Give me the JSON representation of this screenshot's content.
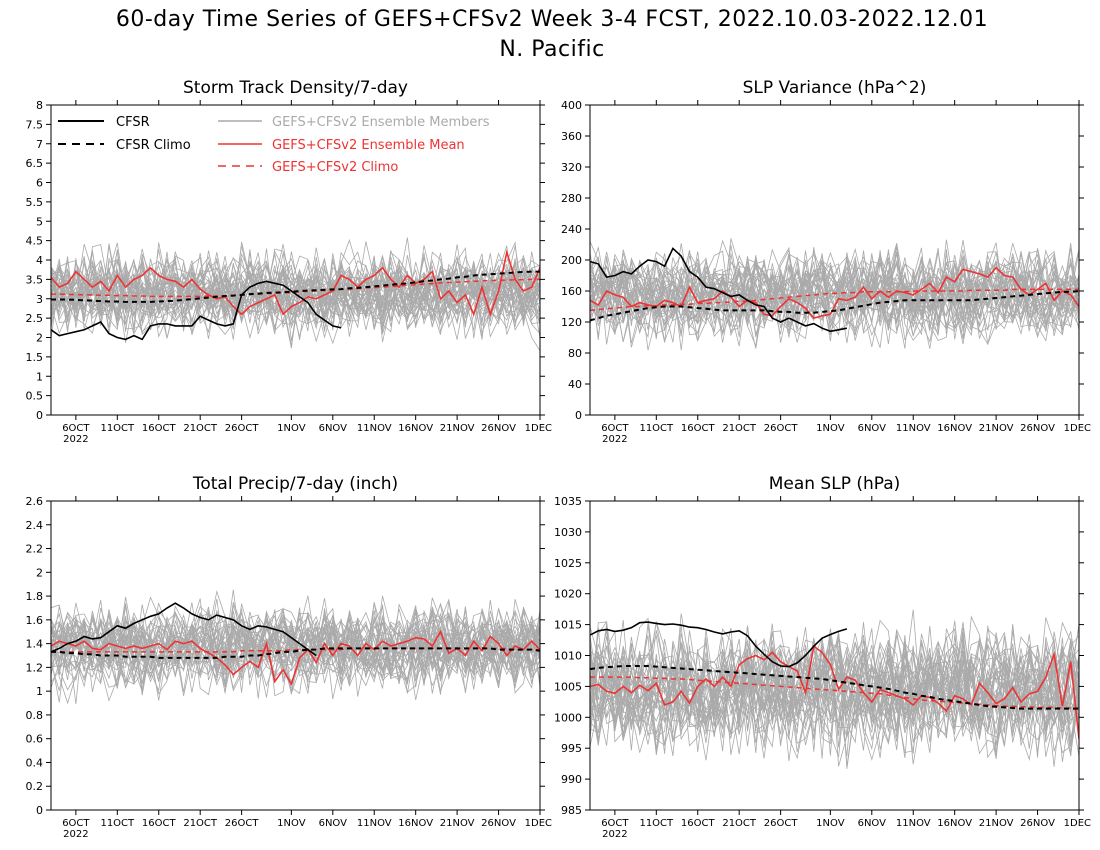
{
  "figure": {
    "title_line1": "60-day Time Series of GEFS+CFSv2 Week 3-4 FCST, 2022.10.03-2022.12.01",
    "title_line2": "N. Pacific"
  },
  "legend": {
    "cfsr": "CFSR",
    "cfsr_climo": "CFSR Climo",
    "members": "GEFS+CFSv2 Ensemble Members",
    "ens_mean": "GEFS+CFSv2 Ensemble Mean",
    "ens_climo": "GEFS+CFSv2 Climo"
  },
  "colors": {
    "cfsr": "#000000",
    "members": "#aaaaaa",
    "ens_mean": "#ee3333",
    "ens_climo": "#ee3333"
  },
  "x_axis": {
    "ticks": [
      {
        "day": 3,
        "label": "6OCT"
      },
      {
        "day": 8,
        "label": "11OCT"
      },
      {
        "day": 13,
        "label": "16OCT"
      },
      {
        "day": 18,
        "label": "21OCT"
      },
      {
        "day": 23,
        "label": "26OCT"
      },
      {
        "day": 29,
        "label": "1NOV"
      },
      {
        "day": 34,
        "label": "6NOV"
      },
      {
        "day": 39,
        "label": "11NOV"
      },
      {
        "day": 44,
        "label": "16NOV"
      },
      {
        "day": 49,
        "label": "21NOV"
      },
      {
        "day": 54,
        "label": "26NOV"
      },
      {
        "day": 59,
        "label": "1DEC"
      }
    ],
    "year_label": "2022"
  },
  "chart_data": [
    {
      "type": "line",
      "title": "Storm Track Density/7-day",
      "xlim": [
        0,
        59
      ],
      "ylim": [
        0,
        8
      ],
      "yticks": [
        0,
        0.5,
        1,
        1.5,
        2,
        2.5,
        3,
        3.5,
        4,
        4.5,
        5,
        5.5,
        6,
        6.5,
        7,
        7.5,
        8
      ],
      "legend": "top-left",
      "cfsr": [
        2.2,
        2.05,
        2.1,
        2.15,
        2.2,
        2.3,
        2.4,
        2.1,
        2.0,
        1.95,
        2.05,
        1.95,
        2.3,
        2.35,
        2.35,
        2.3,
        2.3,
        2.3,
        2.55,
        2.45,
        2.35,
        2.3,
        2.35,
        3.1,
        3.3,
        3.4,
        3.45,
        3.4,
        3.35,
        3.2,
        3.05,
        2.9,
        2.6,
        2.45,
        2.3,
        2.25
      ],
      "cfsr_climo": [
        2.98,
        2.98,
        2.98,
        2.97,
        2.96,
        2.95,
        2.94,
        2.93,
        2.93,
        2.92,
        2.92,
        2.92,
        2.92,
        2.93,
        2.94,
        2.95,
        2.97,
        2.99,
        3.01,
        3.03,
        3.05,
        3.07,
        3.08,
        3.1,
        3.12,
        3.13,
        3.15,
        3.16,
        3.17,
        3.18,
        3.2,
        3.21,
        3.22,
        3.23,
        3.24,
        3.25,
        3.27,
        3.28,
        3.3,
        3.32,
        3.34,
        3.36,
        3.38,
        3.4,
        3.42,
        3.45,
        3.47,
        3.5,
        3.52,
        3.55,
        3.57,
        3.6,
        3.62,
        3.63,
        3.65,
        3.66,
        3.68,
        3.69,
        3.7,
        3.7
      ],
      "ens_mean": [
        3.55,
        3.3,
        3.4,
        3.7,
        3.5,
        3.3,
        3.45,
        3.2,
        3.6,
        3.3,
        3.5,
        3.6,
        3.8,
        3.6,
        3.5,
        3.45,
        3.3,
        3.5,
        3.25,
        3.1,
        3.0,
        3.05,
        2.8,
        2.6,
        2.8,
        2.9,
        3.0,
        3.1,
        2.6,
        2.8,
        2.9,
        3.05,
        3.0,
        3.1,
        3.2,
        3.6,
        3.5,
        3.3,
        3.5,
        3.6,
        3.8,
        3.5,
        3.3,
        3.6,
        3.4,
        3.5,
        3.7,
        3.0,
        3.2,
        2.9,
        3.1,
        2.6,
        3.3,
        2.6,
        3.2,
        4.2,
        3.5,
        3.2,
        3.3,
        3.8
      ],
      "ens_climo": [
        3.12,
        3.12,
        3.11,
        3.11,
        3.1,
        3.1,
        3.09,
        3.09,
        3.08,
        3.08,
        3.07,
        3.07,
        3.06,
        3.06,
        3.06,
        3.06,
        3.06,
        3.06,
        3.06,
        3.07,
        3.07,
        3.08,
        3.09,
        3.1,
        3.11,
        3.12,
        3.13,
        3.14,
        3.15,
        3.16,
        3.18,
        3.19,
        3.2,
        3.21,
        3.22,
        3.24,
        3.25,
        3.26,
        3.28,
        3.29,
        3.3,
        3.32,
        3.33,
        3.35,
        3.36,
        3.38,
        3.39,
        3.41,
        3.42,
        3.43,
        3.44,
        3.45,
        3.46,
        3.47,
        3.48,
        3.48,
        3.49,
        3.49,
        3.5,
        3.5
      ],
      "members": {
        "center": 3.15,
        "spread": 1.5,
        "count": 40
      }
    },
    {
      "type": "line",
      "title": "SLP Variance (hPa^2)",
      "xlim": [
        0,
        59
      ],
      "ylim": [
        0,
        400
      ],
      "yticks": [
        0,
        40,
        80,
        120,
        160,
        200,
        240,
        280,
        320,
        360,
        400
      ],
      "cfsr": [
        198,
        195,
        178,
        180,
        185,
        182,
        192,
        200,
        198,
        192,
        215,
        205,
        185,
        178,
        165,
        163,
        158,
        153,
        155,
        148,
        142,
        140,
        125,
        120,
        125,
        120,
        115,
        118,
        112,
        108,
        110,
        112
      ],
      "cfsr_climo": [
        122,
        125,
        128,
        130,
        132,
        134,
        136,
        138,
        139,
        140,
        140,
        140,
        139,
        138,
        137,
        136,
        135,
        135,
        135,
        135,
        135,
        135,
        134,
        133,
        133,
        132,
        132,
        132,
        133,
        134,
        135,
        137,
        139,
        141,
        143,
        145,
        146,
        147,
        148,
        148,
        148,
        148,
        148,
        148,
        148,
        148,
        148,
        149,
        150,
        151,
        152,
        153,
        154,
        155,
        156,
        157,
        158,
        159,
        159,
        160
      ],
      "ens_mean": [
        148,
        142,
        160,
        155,
        152,
        140,
        145,
        142,
        140,
        148,
        145,
        140,
        165,
        145,
        148,
        150,
        160,
        152,
        140,
        148,
        145,
        130,
        128,
        140,
        150,
        145,
        138,
        125,
        128,
        130,
        150,
        148,
        152,
        165,
        150,
        160,
        152,
        160,
        158,
        155,
        162,
        170,
        158,
        178,
        172,
        188,
        185,
        182,
        178,
        190,
        180,
        178,
        162,
        155,
        162,
        170,
        148,
        160,
        155,
        140
      ],
      "ens_climo": [
        135,
        136,
        137,
        138,
        139,
        140,
        140,
        141,
        141,
        142,
        142,
        143,
        143,
        144,
        144,
        145,
        145,
        146,
        147,
        147,
        148,
        149,
        150,
        151,
        152,
        153,
        154,
        155,
        156,
        157,
        157,
        158,
        158,
        159,
        159,
        159,
        159,
        159,
        159,
        160,
        160,
        160,
        160,
        160,
        160,
        160,
        161,
        161,
        161,
        161,
        161,
        162,
        162,
        162,
        162,
        162,
        162,
        162,
        162,
        162
      ],
      "members": {
        "center": 155,
        "spread": 80,
        "count": 40
      }
    },
    {
      "type": "line",
      "title": "Total Precip/7-day (inch)",
      "xlim": [
        0,
        59
      ],
      "ylim": [
        0,
        2.6
      ],
      "yticks": [
        0,
        0.2,
        0.4,
        0.6,
        0.8,
        1,
        1.2,
        1.4,
        1.6,
        1.8,
        2,
        2.2,
        2.4,
        2.6
      ],
      "cfsr": [
        1.33,
        1.36,
        1.4,
        1.42,
        1.46,
        1.44,
        1.45,
        1.5,
        1.55,
        1.53,
        1.57,
        1.6,
        1.63,
        1.65,
        1.7,
        1.74,
        1.7,
        1.65,
        1.62,
        1.6,
        1.64,
        1.62,
        1.6,
        1.55,
        1.52,
        1.55,
        1.54,
        1.52,
        1.5,
        1.45,
        1.4,
        1.35,
        1.3
      ],
      "cfsr_climo": [
        1.33,
        1.33,
        1.32,
        1.32,
        1.31,
        1.31,
        1.3,
        1.3,
        1.3,
        1.29,
        1.29,
        1.29,
        1.29,
        1.28,
        1.28,
        1.28,
        1.28,
        1.28,
        1.28,
        1.28,
        1.28,
        1.29,
        1.29,
        1.29,
        1.3,
        1.3,
        1.31,
        1.32,
        1.33,
        1.33,
        1.34,
        1.35,
        1.35,
        1.36,
        1.36,
        1.36,
        1.36,
        1.36,
        1.36,
        1.36,
        1.36,
        1.36,
        1.36,
        1.36,
        1.36,
        1.36,
        1.36,
        1.36,
        1.36,
        1.36,
        1.36,
        1.36,
        1.36,
        1.36,
        1.35,
        1.35,
        1.35,
        1.35,
        1.35,
        1.34
      ],
      "ens_mean": [
        1.38,
        1.42,
        1.4,
        1.38,
        1.42,
        1.36,
        1.35,
        1.4,
        1.38,
        1.36,
        1.38,
        1.36,
        1.38,
        1.4,
        1.35,
        1.42,
        1.4,
        1.42,
        1.36,
        1.32,
        1.28,
        1.22,
        1.14,
        1.2,
        1.25,
        1.2,
        1.4,
        1.08,
        1.18,
        1.06,
        1.28,
        1.35,
        1.24,
        1.4,
        1.3,
        1.4,
        1.38,
        1.3,
        1.4,
        1.35,
        1.42,
        1.38,
        1.4,
        1.42,
        1.45,
        1.44,
        1.38,
        1.5,
        1.32,
        1.36,
        1.3,
        1.42,
        1.34,
        1.46,
        1.4,
        1.3,
        1.38,
        1.35,
        1.42,
        1.35
      ],
      "ens_climo": [
        1.33,
        1.33,
        1.33,
        1.33,
        1.33,
        1.33,
        1.33,
        1.33,
        1.33,
        1.33,
        1.33,
        1.33,
        1.33,
        1.33,
        1.33,
        1.33,
        1.33,
        1.33,
        1.33,
        1.33,
        1.33,
        1.33,
        1.33,
        1.34,
        1.34,
        1.34,
        1.34,
        1.34,
        1.34,
        1.35,
        1.35,
        1.35,
        1.35,
        1.35,
        1.35,
        1.35,
        1.36,
        1.36,
        1.36,
        1.36,
        1.36,
        1.36,
        1.36,
        1.36,
        1.36,
        1.36,
        1.36,
        1.36,
        1.36,
        1.36,
        1.36,
        1.36,
        1.36,
        1.36,
        1.36,
        1.36,
        1.35,
        1.35,
        1.35,
        1.35
      ],
      "members": {
        "center": 1.37,
        "spread": 0.5,
        "count": 40
      }
    },
    {
      "type": "line",
      "title": "Mean SLP (hPa)",
      "xlim": [
        0,
        59
      ],
      "ylim": [
        985,
        1035
      ],
      "yticks": [
        985,
        990,
        995,
        1000,
        1005,
        1010,
        1015,
        1020,
        1025,
        1030,
        1035
      ],
      "cfsr": [
        1013.3,
        1014.0,
        1014.2,
        1013.9,
        1014.1,
        1014.5,
        1015.3,
        1015.4,
        1015.2,
        1015.0,
        1015.1,
        1014.9,
        1014.6,
        1014.5,
        1014.2,
        1013.8,
        1013.5,
        1013.8,
        1014.0,
        1013.2,
        1011.5,
        1010.2,
        1009.0,
        1008.3,
        1008.2,
        1008.8,
        1010.0,
        1011.5,
        1012.8,
        1013.4,
        1013.9,
        1014.3
      ],
      "cfsr_climo": [
        1007.8,
        1008.0,
        1008.1,
        1008.2,
        1008.3,
        1008.3,
        1008.3,
        1008.3,
        1008.2,
        1008.1,
        1008.0,
        1007.9,
        1007.8,
        1007.7,
        1007.6,
        1007.5,
        1007.4,
        1007.3,
        1007.2,
        1007.1,
        1007.0,
        1006.9,
        1006.8,
        1006.7,
        1006.6,
        1006.5,
        1006.4,
        1006.3,
        1006.2,
        1006.0,
        1005.8,
        1005.6,
        1005.4,
        1005.2,
        1005.0,
        1004.8,
        1004.6,
        1004.3,
        1004.0,
        1003.8,
        1003.5,
        1003.3,
        1003.0,
        1002.8,
        1002.6,
        1002.4,
        1002.2,
        1002.0,
        1001.8,
        1001.7,
        1001.6,
        1001.5,
        1001.4,
        1001.4,
        1001.4,
        1001.4,
        1001.4,
        1001.4,
        1001.4,
        1001.4
      ],
      "ens_mean": [
        1005.0,
        1005.3,
        1004.2,
        1003.9,
        1005.0,
        1004.0,
        1005.2,
        1004.3,
        1005.5,
        1002.0,
        1002.5,
        1004.2,
        1002.3,
        1005.0,
        1006.2,
        1005.0,
        1006.5,
        1005.0,
        1008.5,
        1009.5,
        1010.0,
        1009.3,
        1010.5,
        1009.0,
        1008.2,
        1007.5,
        1004.0,
        1011.5,
        1010.5,
        1008.5,
        1004.5,
        1006.5,
        1006.0,
        1004.0,
        1002.5,
        1004.5,
        1004.0,
        1003.5,
        1003.0,
        1002.0,
        1003.5,
        1003.2,
        1002.3,
        1001.0,
        1003.5,
        1003.0,
        1002.0,
        1005.5,
        1004.0,
        1002.2,
        1003.0,
        1004.8,
        1002.5,
        1003.8,
        1004.2,
        1006.5,
        1010.2,
        1001.8,
        1009.0,
        996.5
      ],
      "ens_climo": [
        1006.5,
        1006.5,
        1006.5,
        1006.5,
        1006.5,
        1006.5,
        1006.4,
        1006.4,
        1006.3,
        1006.3,
        1006.2,
        1006.2,
        1006.1,
        1006.0,
        1005.9,
        1005.8,
        1005.7,
        1005.6,
        1005.5,
        1005.4,
        1005.3,
        1005.2,
        1005.1,
        1005.0,
        1004.9,
        1004.8,
        1004.7,
        1004.6,
        1004.5,
        1004.4,
        1004.3,
        1004.2,
        1004.1,
        1004.0,
        1003.9,
        1003.8,
        1003.6,
        1003.4,
        1003.2,
        1003.0,
        1002.8,
        1002.7,
        1002.6,
        1002.5,
        1002.4,
        1002.3,
        1002.2,
        1002.1,
        1002.0,
        1001.9,
        1001.8,
        1001.8,
        1001.7,
        1001.7,
        1001.6,
        1001.6,
        1001.6,
        1001.5,
        1001.5,
        1001.5
      ],
      "members": {
        "center": 1004.5,
        "spread": 14,
        "count": 40
      }
    }
  ]
}
